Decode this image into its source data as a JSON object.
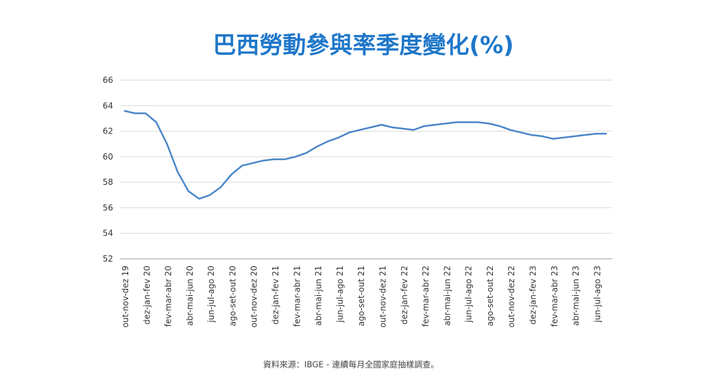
{
  "chart_data": {
    "type": "line",
    "title": "巴西勞動參與率季度變化(%)",
    "source": "資料來源：IBGE - 連續每月全國家庭抽樣調查。",
    "categories": [
      "out-nov-dez 19",
      null,
      "dez-jan-fev 20",
      null,
      "fev-mar-abr 20",
      null,
      "abr-mai-jun 20",
      null,
      "jun-jul-ago 20",
      null,
      "ago-set-out 20",
      null,
      "out-nov-dez 20",
      null,
      "dez-jan-fev 21",
      null,
      "fev-mar-abr 21",
      null,
      "abr-mai-jun 21",
      null,
      "jun-jul-ago 21",
      null,
      "ago-set-out 21",
      null,
      "out-nov-dez 21",
      null,
      "dez-jan-fev 22",
      null,
      "fev-mar-abr 22",
      null,
      "abr-mai-jun 22",
      null,
      "jun-jul-ago 22",
      null,
      "ago-set-out 22",
      null,
      "out-nov-dez 22",
      null,
      "dez-jan-fev 23",
      null,
      "fev-mar-abr 23",
      null,
      "abr-mai-jun 23",
      null,
      "jun-jul-ago 23",
      null
    ],
    "series": [
      {
        "color": "#4a86c8",
        "values": [
          63.6,
          63.4,
          63.4,
          62.7,
          61.0,
          58.8,
          57.3,
          56.7,
          57.0,
          57.6,
          58.6,
          59.3,
          59.5,
          59.7,
          59.8,
          59.8,
          60.0,
          60.3,
          60.8,
          61.2,
          61.5,
          61.9,
          62.1,
          62.3,
          62.5,
          62.3,
          62.2,
          62.1,
          62.4,
          62.5,
          62.6,
          62.7,
          62.7,
          62.7,
          62.6,
          62.4,
          62.1,
          61.9,
          61.7,
          61.6,
          61.4,
          61.5,
          61.6,
          61.7,
          61.8,
          61.8
        ]
      }
    ],
    "ylim": [
      52,
      66
    ],
    "yticks": [
      52,
      54,
      56,
      58,
      60,
      62,
      64,
      66
    ],
    "grid": true
  }
}
